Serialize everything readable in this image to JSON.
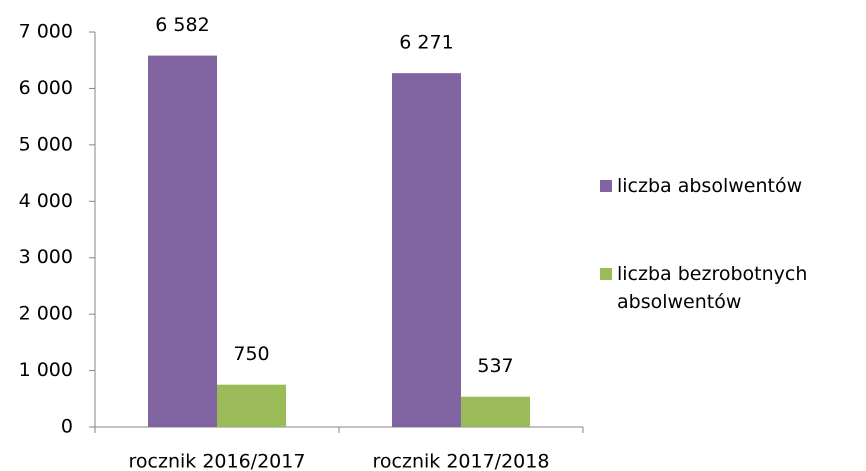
{
  "chart_data": {
    "type": "bar",
    "categories": [
      "rocznik 2016/2017",
      "rocznik 2017/2018"
    ],
    "series": [
      {
        "name": "liczba absolwentów",
        "color": "#8064a2",
        "values": [
          6582,
          6271
        ],
        "value_labels": [
          "6 582",
          "6 271"
        ]
      },
      {
        "name": "liczba bezrobotnych absolwentów",
        "color": "#9bbb59",
        "values": [
          750,
          537
        ]
      }
    ],
    "ylim": [
      0,
      7000
    ],
    "yticks": [
      0,
      {
        "value": 1000,
        "label": "1 000"
      },
      {
        "value": 2000,
        "label": "2 000"
      },
      {
        "value": 3000,
        "label": "3 000"
      },
      {
        "value": 4000,
        "label": "4 000"
      },
      {
        "value": 5000,
        "label": "5 000"
      },
      {
        "value": 6000,
        "label": "6 000"
      },
      {
        "value": 7000,
        "label": "7 000"
      }
    ],
    "legend": "right"
  }
}
